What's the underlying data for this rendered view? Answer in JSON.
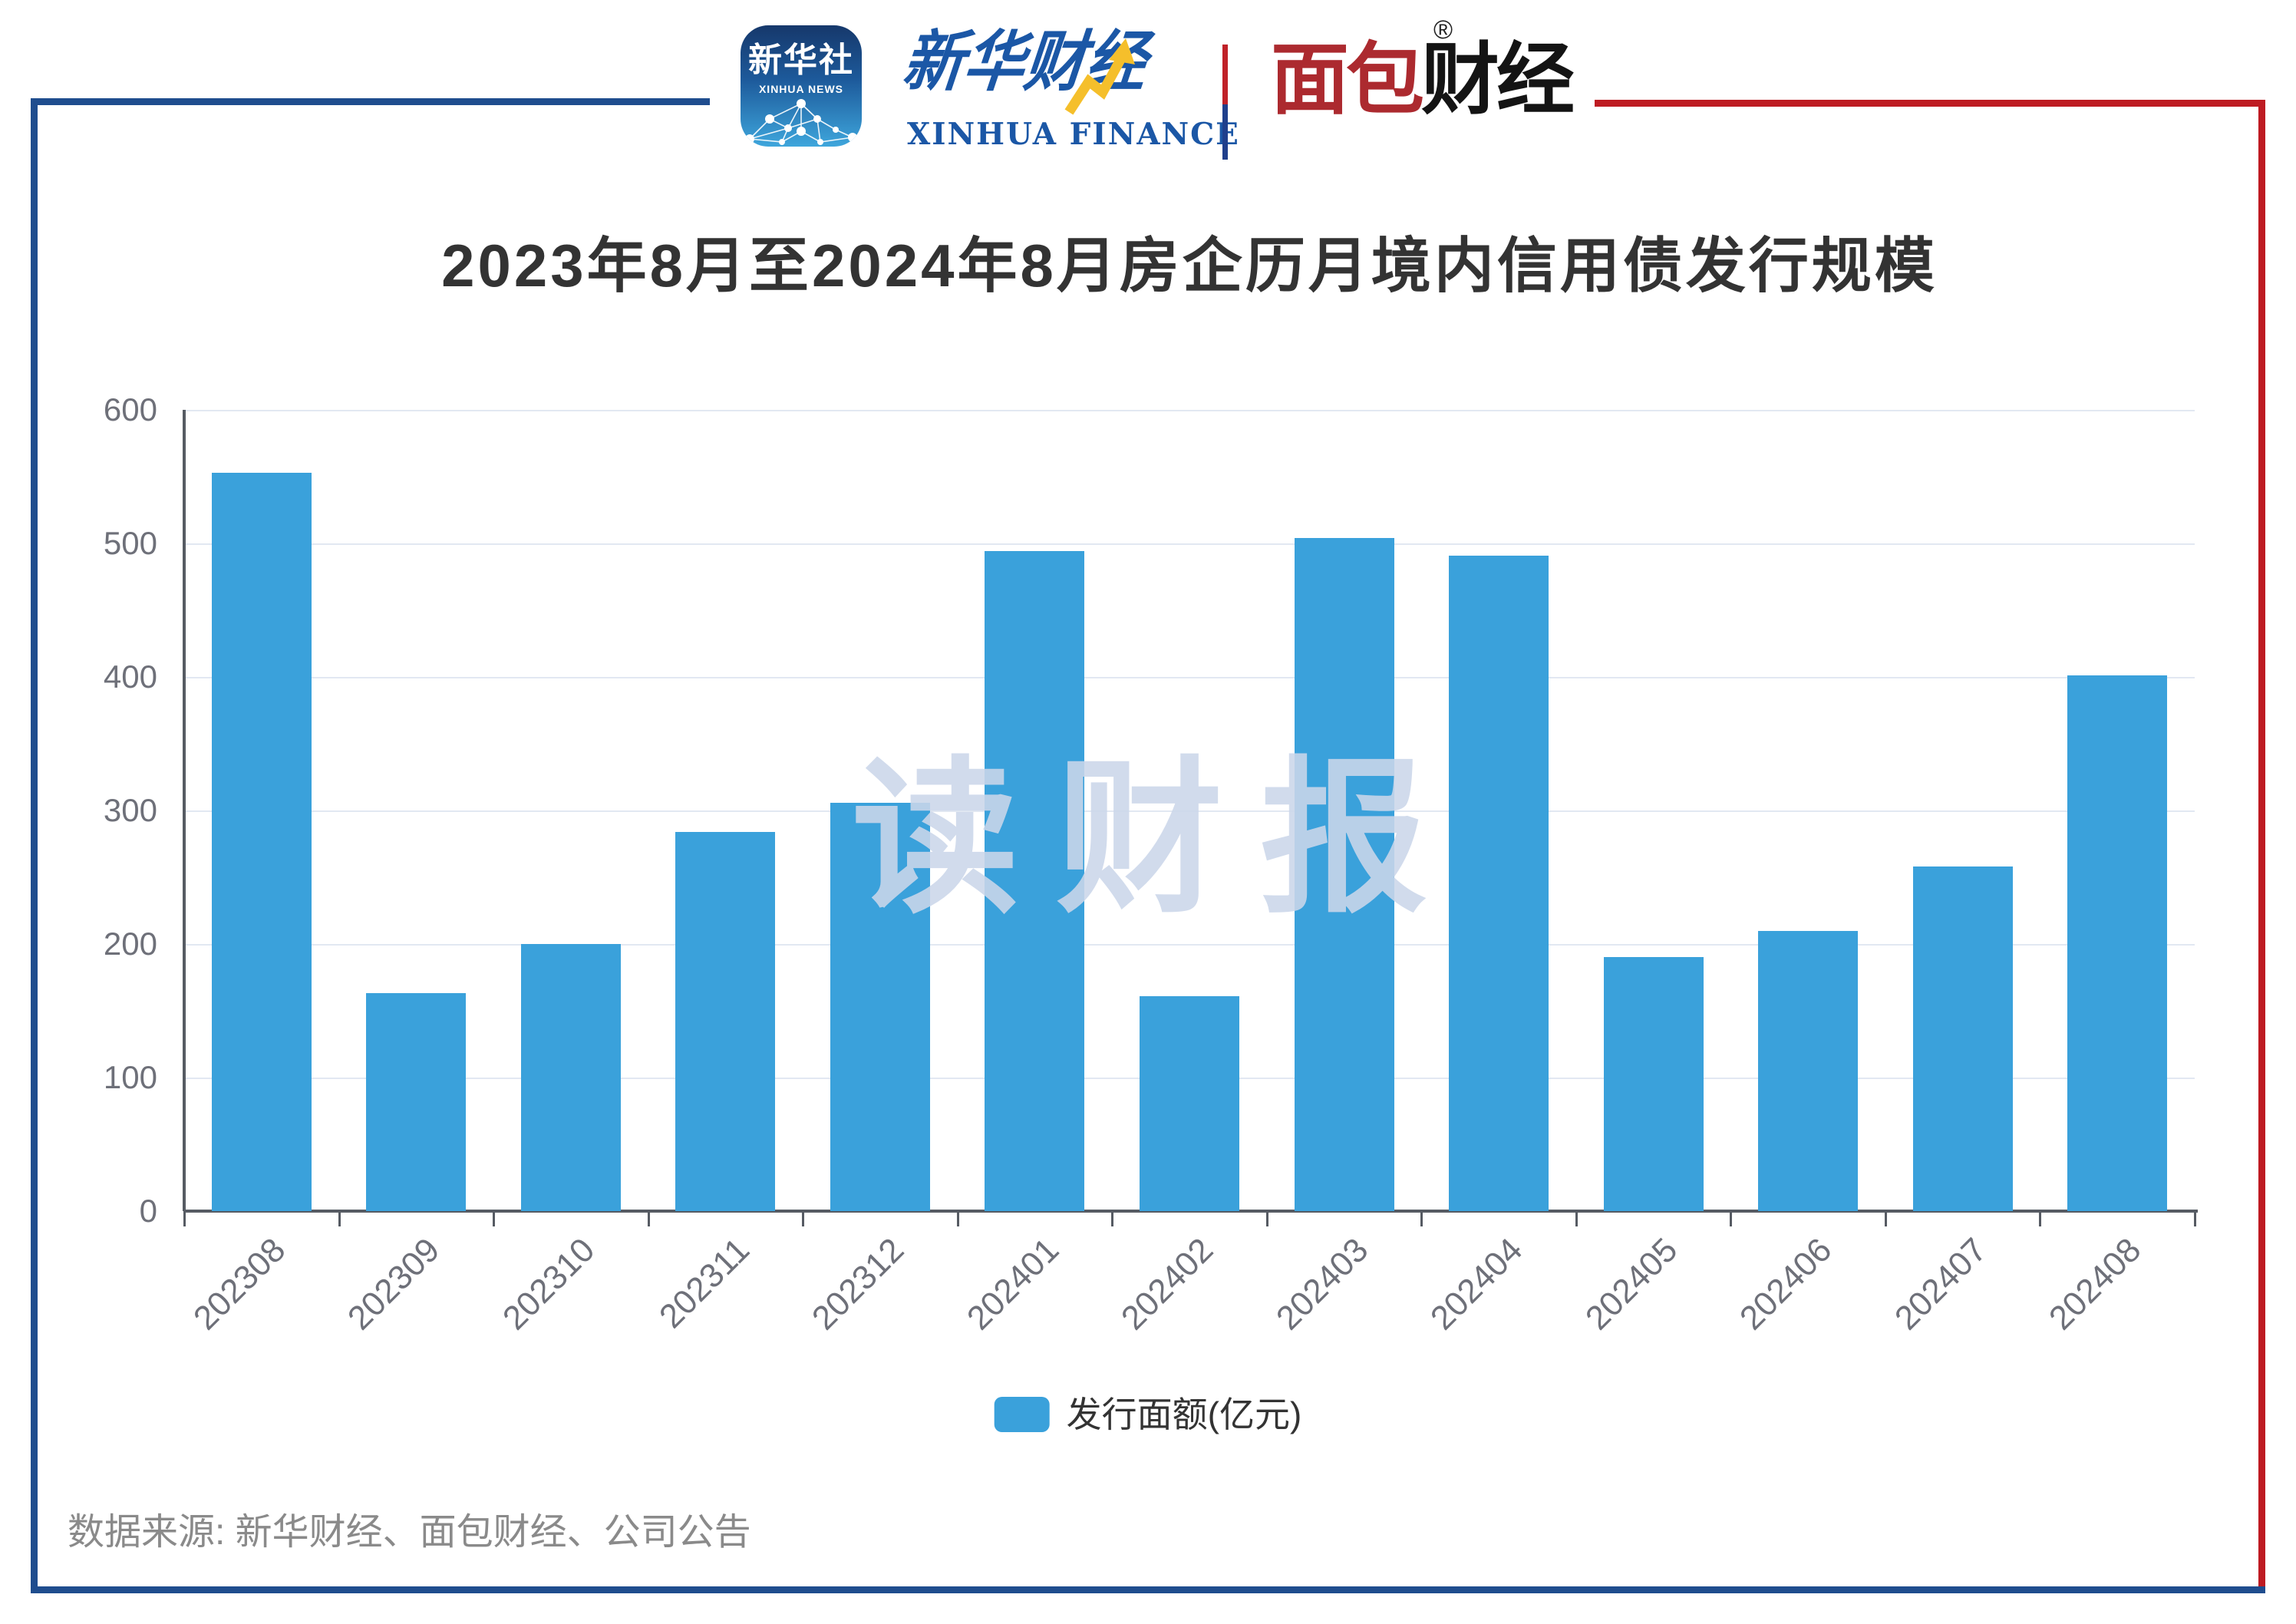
{
  "header": {
    "xinhua_icon": {
      "title": "新华社",
      "subtitle": "XINHUA NEWS"
    },
    "xinhua_finance": {
      "name_cn": "新华财经",
      "name_en": "XINHUA FINANCE"
    },
    "mianbao_finance": {
      "name_red": "面包",
      "name_black": "财经",
      "reg": "®"
    }
  },
  "chart_data": {
    "type": "bar",
    "title": "2023年8月至2024年8月房企历月境内信用债发行规模",
    "categories": [
      "202308",
      "202309",
      "202310",
      "202311",
      "202312",
      "202401",
      "202402",
      "202403",
      "202404",
      "202405",
      "202406",
      "202407",
      "202408"
    ],
    "values": [
      553,
      163,
      200,
      284,
      306,
      494,
      161,
      504,
      491,
      190,
      210,
      258,
      401
    ],
    "series_name": "发行面额(亿元)",
    "xlabel": "",
    "ylabel": "",
    "ylim": [
      0,
      600
    ],
    "y_ticks": [
      0,
      100,
      200,
      300,
      400,
      500,
      600
    ],
    "grid": true,
    "legend_position": "bottom",
    "bar_color": "#3AA1DB"
  },
  "legend": {
    "label": "发行面额(亿元)"
  },
  "watermark": "读财报",
  "source": "数据来源: 新华财经、面包财经、公司公告",
  "colors": {
    "bar": "#3AA1DB",
    "grid_line": "#E2E8F2",
    "axis_line": "#565B63",
    "tick_label": "#6E7079",
    "title": "#333333",
    "source": "#8A8A8A",
    "frame_blue": "#1F4D8E",
    "frame_red": "#BE1B22",
    "brand_blue": "#1B57A6",
    "brand_red": "#AC2A2F",
    "watermark": "#CBD6EA"
  }
}
